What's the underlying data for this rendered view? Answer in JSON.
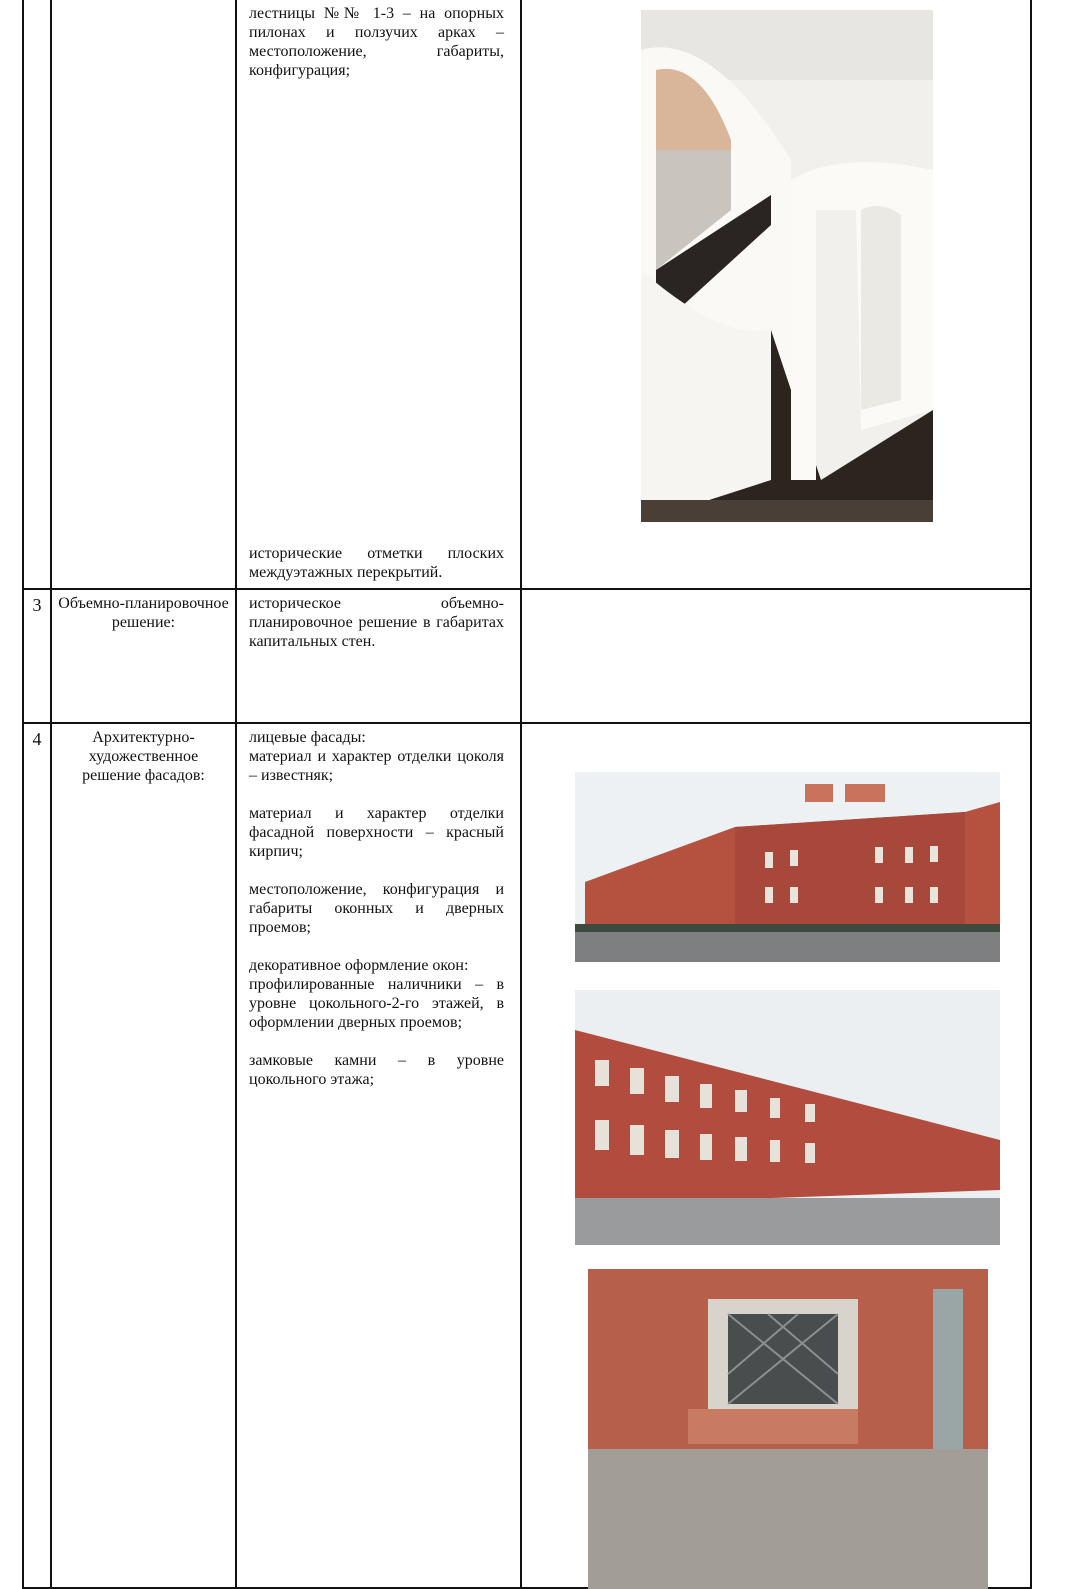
{
  "table": {
    "rows": [
      {
        "requirements": [
          [
            "лестницы №№ 1-3 – на опорных пилонах и ползучих арках – местоположение, габариты, конфигурация;"
          ],
          [
            "исторические отметки плоских междуэтажных перекрытий."
          ]
        ]
      },
      {
        "number": "3",
        "subject": "Объемно-планировочное решение:",
        "requirements": [
          [
            "историческое объемно-планировочное решение в габаритах капитальных стен."
          ]
        ]
      },
      {
        "number": "4",
        "subject": "Архитектурно-художественное решение фасадов:",
        "requirements": [
          [
            "лицевые фасады:",
            "материал и характер отделки цоколя – известняк;"
          ],
          [
            "материал и характер отделки фасадной поверхности – красный кирпич;"
          ],
          [
            "местоположение, конфигурация и габариты оконных и дверных проемов;"
          ],
          [
            "декоративное оформление окон:",
            "профилированные наличники – в уровне цокольного-2-го этажей, в оформлении дверных проемов;"
          ],
          [
            "замковые камни – в уровне цокольного этажа;"
          ]
        ]
      }
    ]
  }
}
